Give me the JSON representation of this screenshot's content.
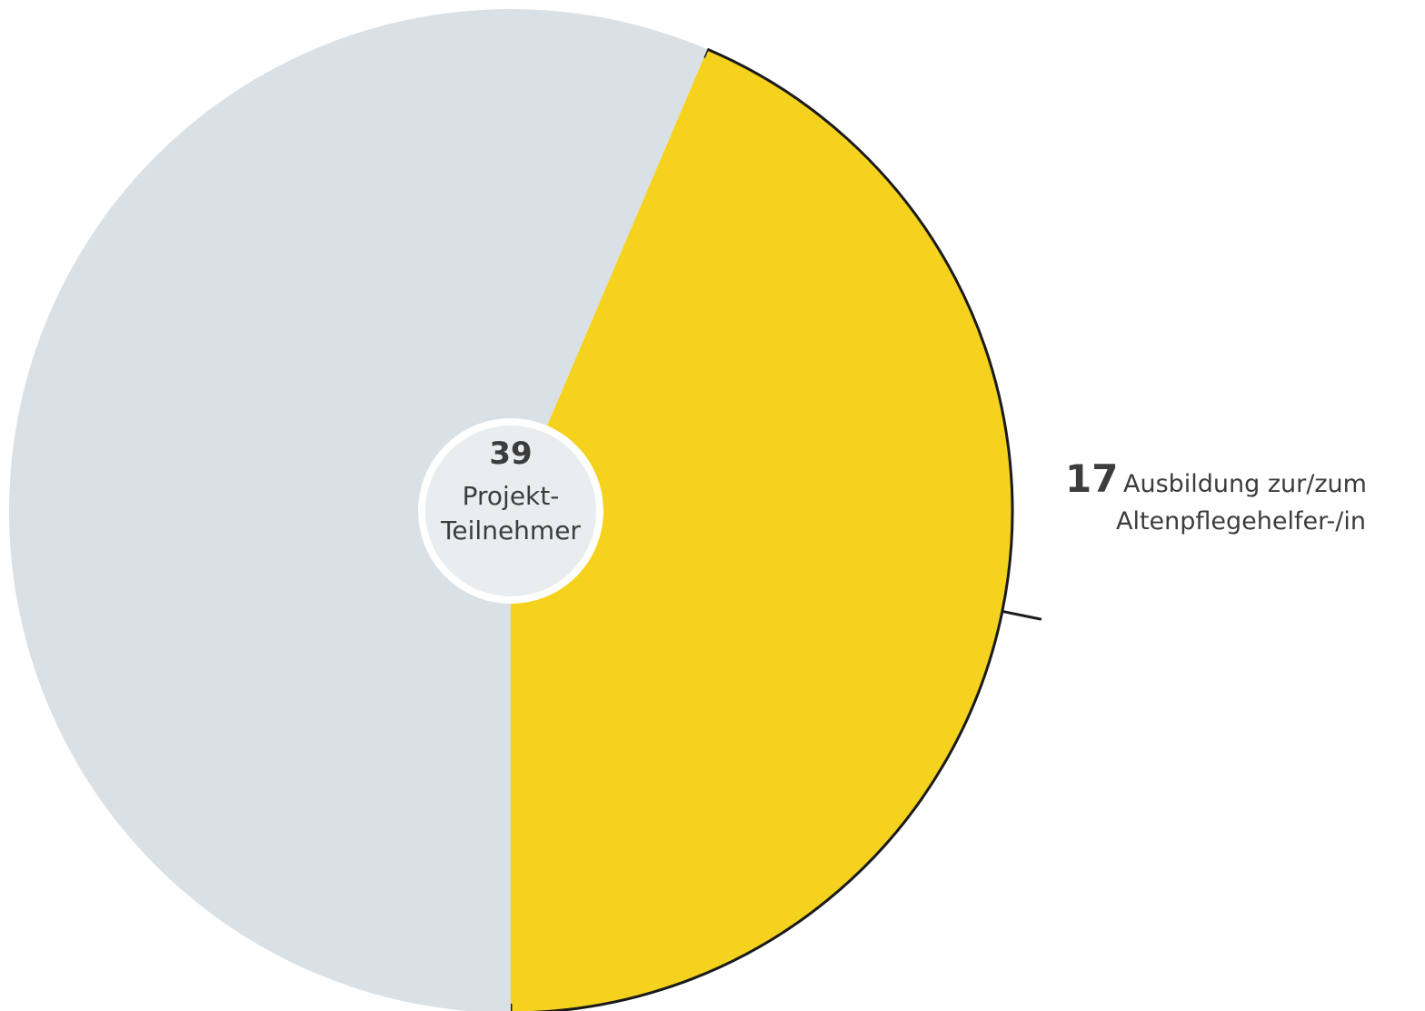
{
  "chart_data": {
    "type": "pie",
    "total": {
      "value": "39",
      "label_line1": "Projekt-",
      "label_line2": "Teilnehmer"
    },
    "slices": [
      {
        "value": 17,
        "label_line1": "Ausbildung zur/zum",
        "label_line2": "Altenpflegehelfer-/in",
        "color": "#f5d21e",
        "labeled": true
      },
      {
        "value": 22,
        "label_line1": "",
        "label_line2": "",
        "color": "#d9e0e6",
        "labeled": false
      }
    ],
    "start_angle_deg": 180,
    "direction": "counterclockwise"
  },
  "colors": {
    "outline": "#1a1a1a",
    "center_fill": "#e9edf0",
    "center_border": "#ffffff",
    "text": "#3c3c3c"
  }
}
